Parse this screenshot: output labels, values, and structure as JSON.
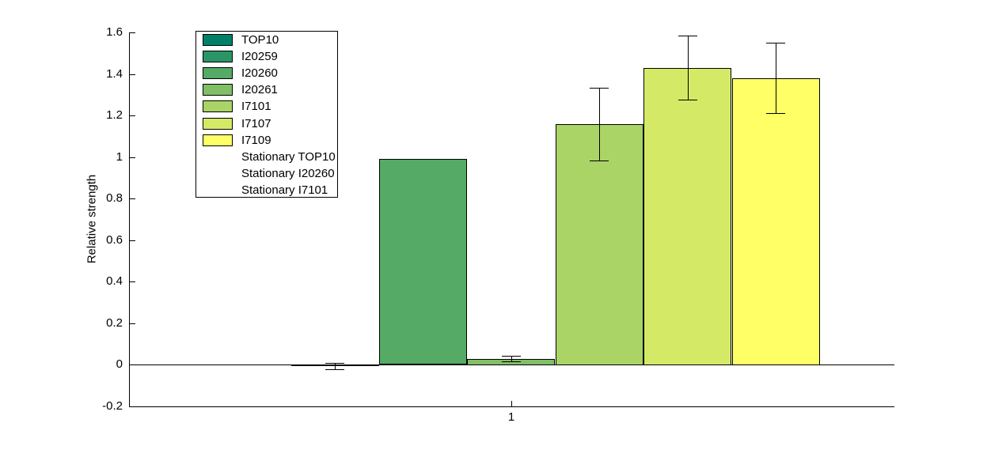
{
  "figure": {
    "background_color": "#ffffff",
    "axis_color": "#000000"
  },
  "chart_data": {
    "type": "bar",
    "title": "",
    "xlabel": "",
    "ylabel": "Relative strength",
    "group_label": "1",
    "x_tick_labels": [
      "1"
    ],
    "ylim": [
      -0.2,
      1.6
    ],
    "y_ticks": [
      -0.2,
      0,
      0.2,
      0.4,
      0.6,
      0.8,
      1,
      1.2,
      1.4,
      1.6
    ],
    "y_tick_labels": [
      "-0.2",
      "0",
      "0.2",
      "0.4",
      "0.6",
      "0.8",
      "1",
      "1.2",
      "1.4",
      "1.6"
    ],
    "grid": false,
    "legend_position": "top-left",
    "bar_edge_color": "#000000",
    "series": [
      {
        "name": "TOP10",
        "value": 0.0,
        "error": null,
        "color": "#008066"
      },
      {
        "name": "I20259",
        "value": -0.005,
        "error": 0.015,
        "color": "#2A9566"
      },
      {
        "name": "I20260",
        "value": 0.99,
        "error": null,
        "color": "#55AA66"
      },
      {
        "name": "I20261",
        "value": 0.03,
        "error": 0.013,
        "color": "#80BF66"
      },
      {
        "name": "I7101",
        "value": 1.16,
        "error": 0.175,
        "color": "#AAD466"
      },
      {
        "name": "I7107",
        "value": 1.43,
        "error": 0.155,
        "color": "#D4EA66"
      },
      {
        "name": "I7109",
        "value": 1.38,
        "error": 0.17,
        "color": "#FFFF66"
      }
    ],
    "legend_extra": [
      {
        "name": "Stationary TOP10",
        "swatch": null
      },
      {
        "name": "Stationary I20260",
        "swatch": null
      },
      {
        "name": "Stationary I7101",
        "swatch": null
      }
    ]
  }
}
